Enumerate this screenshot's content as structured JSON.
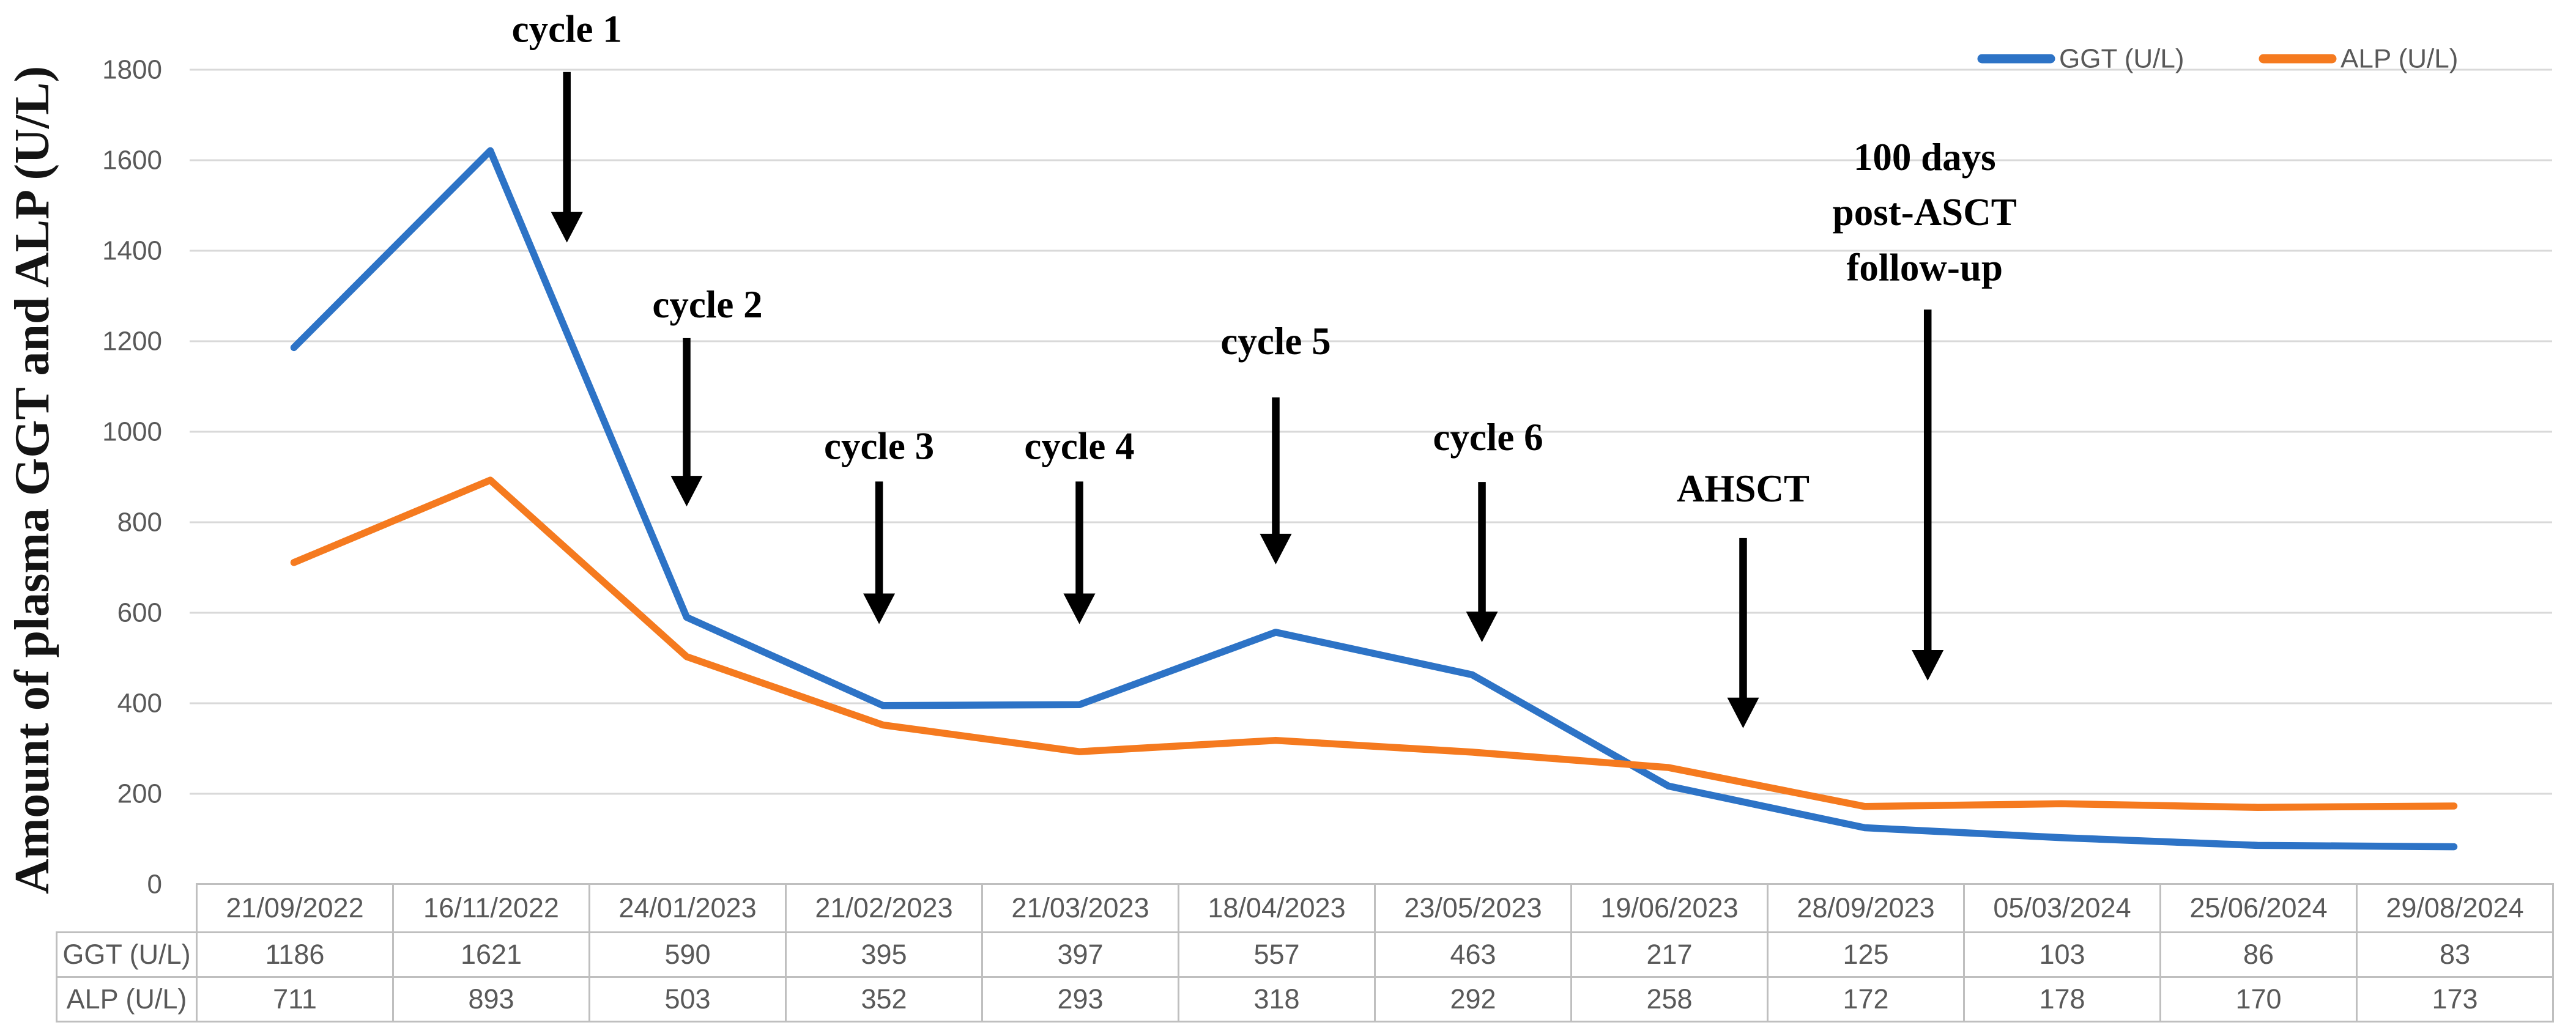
{
  "y_axis": {
    "title": "Amount of plasma GGT and ALP (U/L)",
    "min": 0,
    "max": 1800,
    "tick_step": 200,
    "tick_labels": [
      "0",
      "200",
      "400",
      "600",
      "800",
      "1000",
      "1200",
      "1400",
      "1600",
      "1800"
    ]
  },
  "chart_data": {
    "type": "line",
    "categories": [
      "21/09/2022",
      "16/11/2022",
      "24/01/2023",
      "21/02/2023",
      "21/03/2023",
      "18/04/2023",
      "23/05/2023",
      "19/06/2023",
      "28/09/2023",
      "05/03/2024",
      "25/06/2024",
      "29/08/2024"
    ],
    "series": [
      {
        "name": "GGT (U/L)",
        "color": "#2D73C6",
        "values": [
          1186,
          1621,
          590,
          395,
          397,
          557,
          463,
          217,
          125,
          103,
          86,
          83
        ]
      },
      {
        "name": "ALP (U/L)",
        "color": "#F57A1F",
        "values": [
          711,
          893,
          503,
          352,
          293,
          318,
          292,
          258,
          172,
          178,
          170,
          173
        ]
      }
    ],
    "ylabel": "Amount of plasma GGT and ALP (U/L)",
    "xlabel": "",
    "title": "",
    "ylim": [
      0,
      1800
    ],
    "grid": true,
    "legend_position": "top-right",
    "annotations": [
      {
        "id": "cycle-1",
        "lines": [
          "cycle 1"
        ],
        "x_index": 1.39,
        "label_dx": 0,
        "label_value": 1890,
        "arrow_from": 1795,
        "arrow_to": 1418
      },
      {
        "id": "cycle-2",
        "lines": [
          "cycle 2"
        ],
        "x_index": 2.0,
        "label_dx": 34,
        "label_value": 1281,
        "arrow_from": 1207,
        "arrow_to": 835
      },
      {
        "id": "cycle-3",
        "lines": [
          "cycle 3"
        ],
        "x_index": 2.98,
        "label_dx": 0,
        "label_value": 968,
        "arrow_from": 890,
        "arrow_to": 575
      },
      {
        "id": "cycle-4",
        "lines": [
          "cycle 4"
        ],
        "x_index": 4.0,
        "label_dx": 0,
        "label_value": 968,
        "arrow_from": 890,
        "arrow_to": 575
      },
      {
        "id": "cycle-5",
        "lines": [
          "cycle 5"
        ],
        "x_index": 5.0,
        "label_dx": 0,
        "label_value": 1200,
        "arrow_from": 1076,
        "arrow_to": 707
      },
      {
        "id": "cycle-6",
        "lines": [
          "cycle 6"
        ],
        "x_index": 6.05,
        "label_dx": 10,
        "label_value": 988,
        "arrow_from": 889,
        "arrow_to": 535
      },
      {
        "id": "ahsct",
        "lines": [
          "AHSCT"
        ],
        "x_index": 7.38,
        "label_dx": 0,
        "label_value": 874,
        "arrow_from": 765,
        "arrow_to": 345
      },
      {
        "id": "followup",
        "lines": [
          "100 days",
          "post-ASCT",
          "follow-up"
        ],
        "x_index": 8.32,
        "label_dx": -5,
        "label_value": 1485,
        "line_spacing": 122,
        "arrow_from": 1270,
        "arrow_to": 450
      }
    ]
  },
  "legend": {
    "items": [
      {
        "label": "GGT (U/L)",
        "color": "#2D73C6"
      },
      {
        "label": "ALP (U/L)",
        "color": "#F57A1F"
      }
    ]
  },
  "table": {
    "row_headers": [
      "GGT (U/L)",
      "ALP (U/L)"
    ],
    "columns": [
      "21/09/2022",
      "16/11/2022",
      "24/01/2023",
      "21/02/2023",
      "21/03/2023",
      "18/04/2023",
      "23/05/2023",
      "19/06/2023",
      "28/09/2023",
      "05/03/2024",
      "25/06/2024",
      "29/08/2024"
    ],
    "rows": [
      [
        "1186",
        "1621",
        "590",
        "395",
        "397",
        "557",
        "463",
        "217",
        "125",
        "103",
        "86",
        "83"
      ],
      [
        "711",
        "893",
        "503",
        "352",
        "293",
        "318",
        "292",
        "258",
        "172",
        "178",
        "170",
        "173"
      ]
    ]
  },
  "colors": {
    "ggt_blue": "#2D73C6",
    "alp_orange": "#F57A1F",
    "gridline": "#D9D9D9",
    "table_border": "#BFBFBF",
    "text_gray": "#595959",
    "annotation_black": "#000000",
    "background": "#ffffff"
  }
}
